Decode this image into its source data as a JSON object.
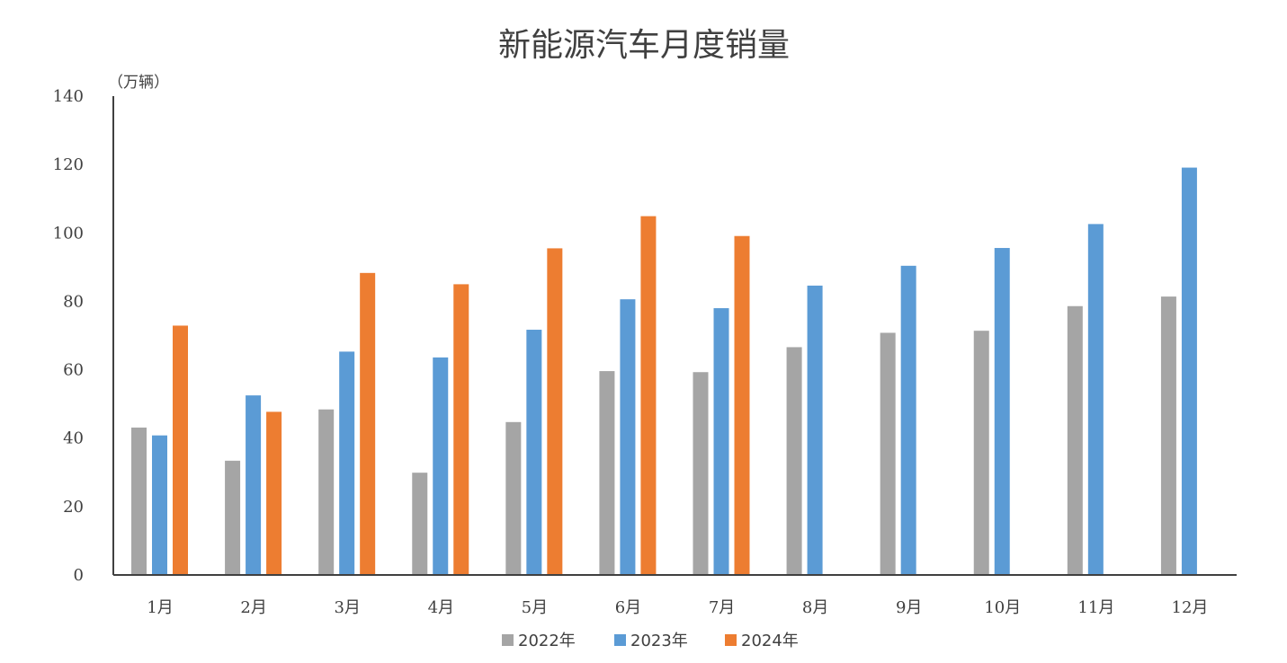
{
  "chart_data": {
    "type": "bar",
    "title": "新能源汽车月度销量",
    "ylabel": "（万辆）",
    "xlabel": "",
    "categories": [
      "1月",
      "2月",
      "3月",
      "4月",
      "5月",
      "6月",
      "7月",
      "8月",
      "9月",
      "10月",
      "11月",
      "12月"
    ],
    "series": [
      {
        "name": "2022年",
        "color": "#a5a5a5",
        "values": [
          43.1,
          33.4,
          48.4,
          29.9,
          44.7,
          59.6,
          59.3,
          66.6,
          70.8,
          71.4,
          78.6,
          81.4
        ]
      },
      {
        "name": "2023年",
        "color": "#5b9bd5",
        "values": [
          40.8,
          52.5,
          65.3,
          63.6,
          71.7,
          80.6,
          78.0,
          84.6,
          90.4,
          95.6,
          102.6,
          119.1
        ]
      },
      {
        "name": "2024年",
        "color": "#ed7d31",
        "values": [
          72.9,
          47.7,
          88.3,
          85.0,
          95.5,
          104.9,
          99.1,
          null,
          null,
          null,
          null,
          null
        ]
      }
    ],
    "ylim": [
      0,
      140
    ],
    "yticks": [
      "0",
      "20",
      "40",
      "60",
      "80",
      "100",
      "120",
      "140"
    ],
    "grid": false,
    "legend": "bottom"
  }
}
